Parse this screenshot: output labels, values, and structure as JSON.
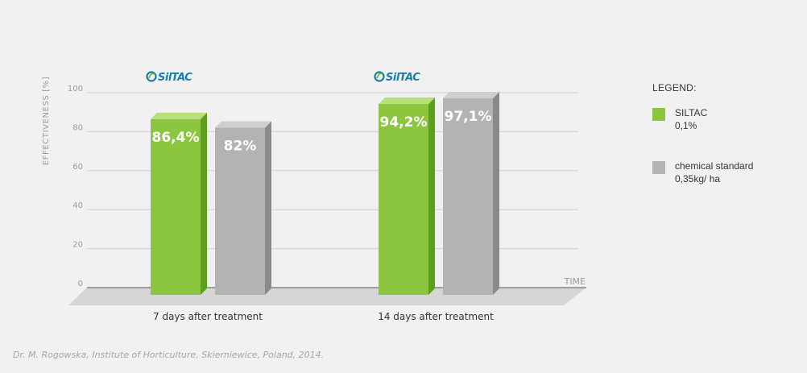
{
  "brand": {
    "logo_text": "SilTAC",
    "colors": {
      "background": "#f1f1f1",
      "siltac_green": "#8cc63f",
      "siltac_green_side": "#5e9e1f",
      "siltac_green_top": "#b8e07a",
      "standard_gray": "#b3b3b3",
      "standard_gray_side": "#8a8a8a",
      "standard_gray_top": "#cfcfcf",
      "logo_blue": "#1a7fa8",
      "logo_green": "#6ab023"
    }
  },
  "chart_data": {
    "type": "bar",
    "categories": [
      "7 days after treatment",
      "14 days after treatment"
    ],
    "series": [
      {
        "name": "SILTAC 0,1%",
        "values": [
          86.4,
          94.2
        ],
        "value_labels": [
          "86,4%",
          "94,2%"
        ]
      },
      {
        "name": "chemical standard 0,35kg/ ha",
        "values": [
          82,
          97.1
        ],
        "value_labels": [
          "82%",
          "97,1%"
        ]
      }
    ],
    "ylabel": "EFFECTIVENESS [%]",
    "xlabel": "TIME",
    "ylim": [
      0,
      100
    ],
    "yticks": [
      0,
      20,
      40,
      60,
      80,
      100
    ],
    "grid": true,
    "legend_position": "right"
  },
  "legend": {
    "title": "LEGEND:",
    "items": [
      {
        "line1": "SILTAC",
        "line2": "0,1%",
        "color": "#8cc63f"
      },
      {
        "line1": "chemical standard",
        "line2": "0,35kg/ ha",
        "color": "#b3b3b3"
      }
    ]
  },
  "source_note": "Dr. M. Rogowska, Institute of Horticulture, Skierniewice, Poland, 2014."
}
